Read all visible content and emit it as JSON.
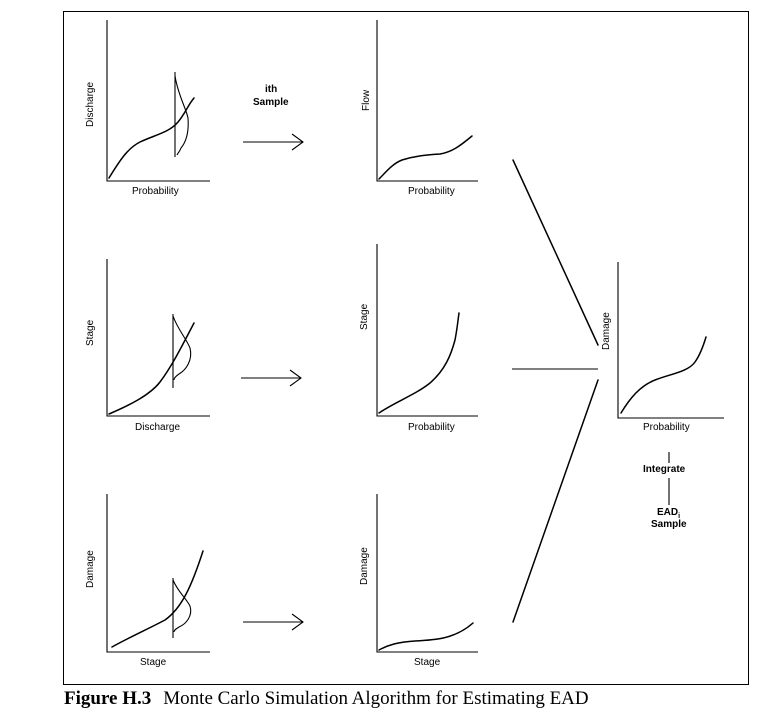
{
  "panels": {
    "p1": {
      "xlabel": "Probability",
      "ylabel": "Discharge"
    },
    "p2": {
      "xlabel": "Discharge",
      "ylabel": "Stage"
    },
    "p3": {
      "xlabel": "Stage",
      "ylabel": "Damage"
    },
    "p4": {
      "xlabel": "Probability",
      "ylabel": "Flow"
    },
    "p5": {
      "xlabel": "Probability",
      "ylabel": "Stage"
    },
    "p6": {
      "xlabel": "Stage",
      "ylabel": "Damage"
    },
    "p7": {
      "xlabel": "Probability",
      "ylabel": "Damage"
    }
  },
  "sample_label": {
    "line1": "ith",
    "line2": "Sample"
  },
  "integrate_label": "Integrate",
  "ead_label": {
    "main": "EAD",
    "sub": "i",
    "line2": "Sample"
  },
  "caption": {
    "figure": "Figure H.3",
    "text": "Monte Carlo Simulation Algorithm for Estimating EAD"
  }
}
